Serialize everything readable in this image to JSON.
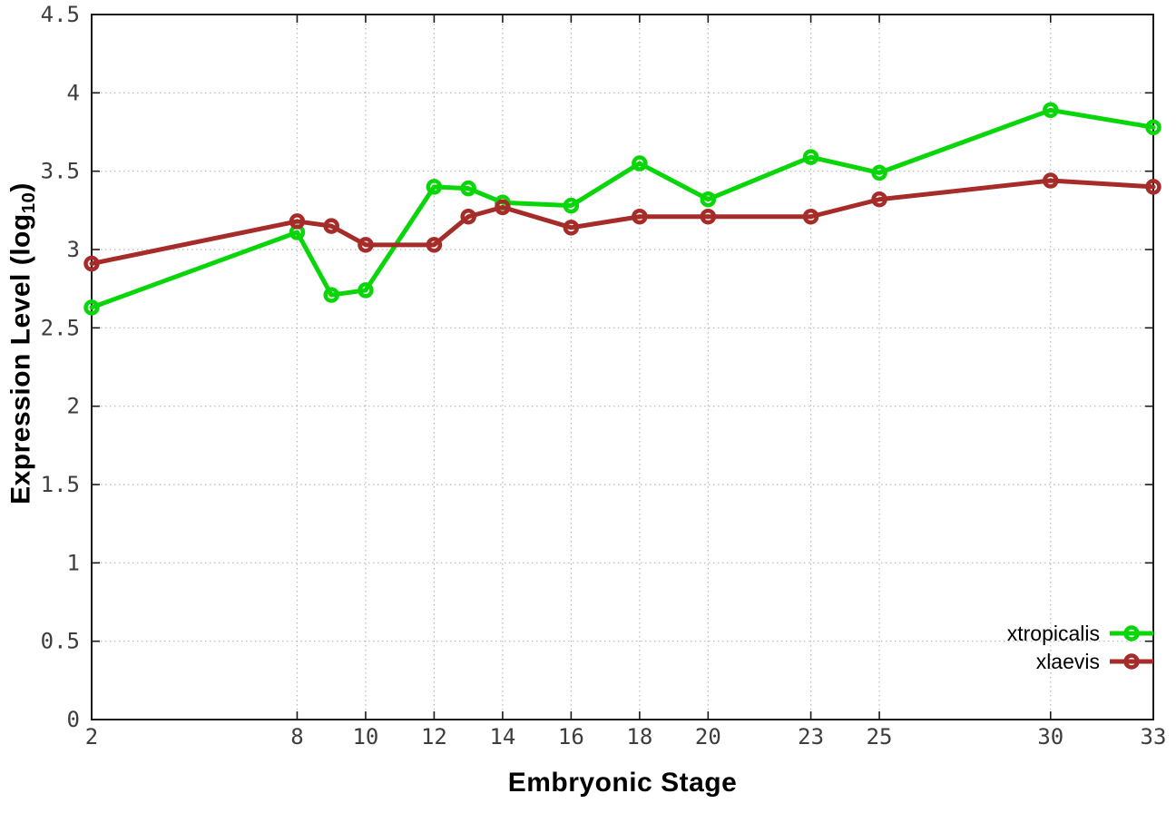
{
  "chart_data": {
    "type": "line",
    "title": "",
    "xlabel": "Embryonic Stage",
    "ylabel": "Expression Level (log10)",
    "ylabel_main": "Expression Level (log",
    "ylabel_sub": "10",
    "ylabel_close": ")",
    "xlim": [
      2,
      33
    ],
    "ylim": [
      0,
      4.5
    ],
    "xtick_labels": [
      "2",
      "8",
      "10",
      "12",
      "14",
      "16",
      "18",
      "20",
      "23",
      "25",
      "30",
      "33"
    ],
    "ytick_labels": [
      "0",
      "0.5",
      "1",
      "1.5",
      "2",
      "2.5",
      "3",
      "3.5",
      "4",
      "4.5"
    ],
    "grid": true,
    "legend_position": "bottom-right",
    "x": [
      2,
      8,
      9,
      10,
      12,
      13,
      14,
      16,
      18,
      20,
      23,
      25,
      30,
      33
    ],
    "series": [
      {
        "name": "xtropicalis",
        "color": "#09d609",
        "marker": "open-circle",
        "values": [
          2.63,
          3.11,
          2.71,
          2.74,
          3.4,
          3.39,
          3.3,
          3.28,
          3.55,
          3.32,
          3.59,
          3.49,
          3.89,
          3.78
        ]
      },
      {
        "name": "xlaevis",
        "color": "#a52c28",
        "marker": "open-circle",
        "values": [
          2.91,
          3.18,
          3.15,
          3.03,
          3.03,
          3.21,
          3.27,
          3.14,
          3.21,
          3.21,
          3.21,
          3.32,
          3.44,
          3.4
        ]
      }
    ],
    "style": {
      "grid_color": "#b8b8b8",
      "border_color": "#1a1a1a",
      "tick_label_color": "#3d3d3d"
    }
  }
}
